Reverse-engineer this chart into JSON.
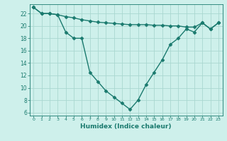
{
  "line1": {
    "x": [
      0,
      1,
      2,
      3,
      4,
      5,
      6,
      7,
      8,
      9,
      10,
      11,
      12,
      13,
      14,
      15,
      16,
      17,
      18,
      19,
      20,
      21,
      22,
      23
    ],
    "y": [
      23.0,
      22.0,
      22.0,
      21.8,
      21.5,
      21.3,
      21.0,
      20.8,
      20.6,
      20.5,
      20.4,
      20.3,
      20.2,
      20.2,
      20.2,
      20.1,
      20.1,
      20.0,
      20.0,
      19.8,
      19.8,
      20.5,
      19.5,
      20.5
    ]
  },
  "line2": {
    "x": [
      0,
      1,
      2,
      3,
      4,
      5,
      6,
      7,
      8,
      9,
      10,
      11,
      12,
      13,
      14,
      15,
      16,
      17,
      18,
      19,
      20,
      21,
      22,
      23
    ],
    "y": [
      23.0,
      22.0,
      22.0,
      21.8,
      19.0,
      18.0,
      18.0,
      12.5,
      11.0,
      9.5,
      8.5,
      7.5,
      6.5,
      8.0,
      10.5,
      12.5,
      14.5,
      17.0,
      18.0,
      19.5,
      19.0,
      20.5,
      19.5,
      20.5
    ]
  },
  "color": "#1a7a6e",
  "bg_color": "#cef0eb",
  "grid_color": "#aad8d0",
  "xlabel": "Humidex (Indice chaleur)",
  "ylim": [
    5.5,
    23.5
  ],
  "xlim": [
    -0.5,
    23.5
  ],
  "yticks": [
    6,
    8,
    10,
    12,
    14,
    16,
    18,
    20,
    22
  ],
  "xticks": [
    0,
    1,
    2,
    3,
    4,
    5,
    6,
    7,
    8,
    9,
    10,
    11,
    12,
    13,
    14,
    15,
    16,
    17,
    18,
    19,
    20,
    21,
    22,
    23
  ],
  "marker": "D",
  "markersize": 2.5,
  "linewidth": 1.0,
  "xlabel_fontsize": 6.5,
  "tick_fontsize_x": 4.5,
  "tick_fontsize_y": 5.5
}
